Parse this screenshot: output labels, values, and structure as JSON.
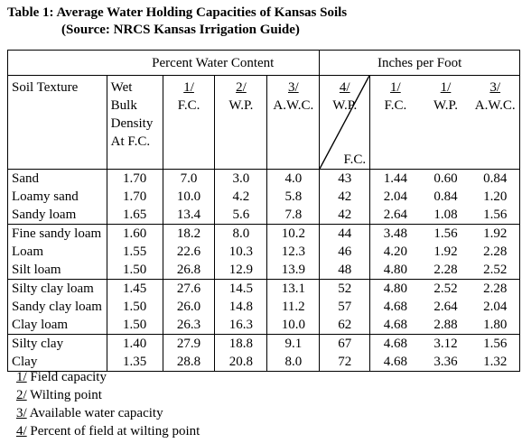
{
  "title": {
    "line1": "Table 1: Average Water Holding Capacities of Kansas Soils",
    "line2": "(Source: NRCS Kansas Irrigation Guide)"
  },
  "header": {
    "group1": "Percent Water Content",
    "group2": "Inches per Foot",
    "soil_texture": "Soil Texture",
    "wet_bulk": [
      "Wet",
      "Bulk",
      "Density",
      "At F.C."
    ],
    "pct_fc_ref": "1/",
    "pct_fc": "F.C.",
    "pct_wp_ref": "2/",
    "pct_wp": "W.P.",
    "pct_awc_ref": "3/",
    "pct_awc": "A.W.C.",
    "wpfc_ref": "4/",
    "wpfc_top": "W.P.",
    "wpfc_bottom": "F.C.",
    "in_fc_ref": "1/",
    "in_fc": "F.C.",
    "in_wp_ref": "1/",
    "in_wp": "W.P.",
    "in_awc_ref": "3/",
    "in_awc": "A.W.C."
  },
  "groups": [
    {
      "rows": [
        {
          "soil": "Sand",
          "bulk": "1.70",
          "fc": "7.0",
          "wp": "3.0",
          "awc": "4.0",
          "wpfc": "43",
          "ifc": "1.44",
          "iwp": "0.60",
          "iawc": "0.84"
        },
        {
          "soil": "Loamy sand",
          "bulk": "1.70",
          "fc": "10.0",
          "wp": "4.2",
          "awc": "5.8",
          "wpfc": "42",
          "ifc": "2.04",
          "iwp": "0.84",
          "iawc": "1.20"
        },
        {
          "soil": "Sandy loam",
          "bulk": "1.65",
          "fc": "13.4",
          "wp": "5.6",
          "awc": "7.8",
          "wpfc": "42",
          "ifc": "2.64",
          "iwp": "1.08",
          "iawc": "1.56"
        }
      ]
    },
    {
      "rows": [
        {
          "soil": "Fine sandy loam",
          "bulk": "1.60",
          "fc": "18.2",
          "wp": "8.0",
          "awc": "10.2",
          "wpfc": "44",
          "ifc": "3.48",
          "iwp": "1.56",
          "iawc": "1.92"
        },
        {
          "soil": "Loam",
          "bulk": "1.55",
          "fc": "22.6",
          "wp": "10.3",
          "awc": "12.3",
          "wpfc": "46",
          "ifc": "4.20",
          "iwp": "1.92",
          "iawc": "2.28"
        },
        {
          "soil": "Silt loam",
          "bulk": "1.50",
          "fc": "26.8",
          "wp": "12.9",
          "awc": "13.9",
          "wpfc": "48",
          "ifc": "4.80",
          "iwp": "2.28",
          "iawc": "2.52"
        }
      ]
    },
    {
      "rows": [
        {
          "soil": "Silty clay loam",
          "bulk": "1.45",
          "fc": "27.6",
          "wp": "14.5",
          "awc": "13.1",
          "wpfc": "52",
          "ifc": "4.80",
          "iwp": "2.52",
          "iawc": "2.28"
        },
        {
          "soil": "Sandy clay loam",
          "bulk": "1.50",
          "fc": "26.0",
          "wp": "14.8",
          "awc": "11.2",
          "wpfc": "57",
          "ifc": "4.68",
          "iwp": "2.64",
          "iawc": "2.04"
        },
        {
          "soil": "Clay loam",
          "bulk": "1.50",
          "fc": "26.3",
          "wp": "16.3",
          "awc": "10.0",
          "wpfc": "62",
          "ifc": "4.68",
          "iwp": "2.88",
          "iawc": "1.80"
        }
      ]
    },
    {
      "rows": [
        {
          "soil": "Silty clay",
          "bulk": "1.40",
          "fc": "27.9",
          "wp": "18.8",
          "awc": "9.1",
          "wpfc": "67",
          "ifc": "4.68",
          "iwp": "3.12",
          "iawc": "1.56"
        },
        {
          "soil": "Clay",
          "bulk": "1.35",
          "fc": "28.8",
          "wp": "20.8",
          "awc": "8.0",
          "wpfc": "72",
          "ifc": "4.68",
          "iwp": "3.36",
          "iawc": "1.32"
        }
      ]
    }
  ],
  "footnotes": [
    {
      "ref": "1/",
      "text": "Field capacity"
    },
    {
      "ref": "2/",
      "text": "Wilting point"
    },
    {
      "ref": "3/",
      "text": "Available water capacity"
    },
    {
      "ref": "4/",
      "text": "Percent of field at wilting point"
    }
  ]
}
